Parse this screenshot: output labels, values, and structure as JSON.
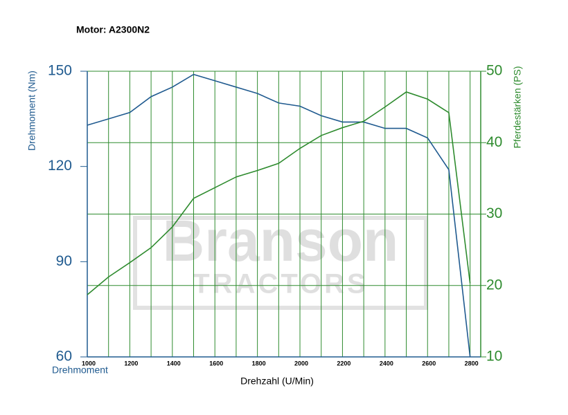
{
  "chart_data": {
    "type": "line",
    "title": "Motor: A2300N2",
    "x_label": "Drehzahl (U/Min)",
    "y_label": "Drehmoment (Nm)",
    "y_label_bottom": "Drehmoment",
    "y2_label": "Pferdestärken (PS)",
    "watermark": [
      "Branson",
      "TRACTORS"
    ],
    "x": [
      1000,
      1100,
      1200,
      1300,
      1400,
      1500,
      1600,
      1700,
      1800,
      1900,
      2000,
      2100,
      2200,
      2300,
      2400,
      2500,
      2600,
      2700,
      2800
    ],
    "series": [
      {
        "name": "Drehmoment (Nm)",
        "color": "#1f5a8f",
        "axis": "y",
        "values": [
          133,
          135,
          137,
          142,
          145,
          149,
          147,
          145,
          143,
          140,
          139,
          136,
          134,
          134,
          132,
          132,
          129,
          119,
          60
        ]
      },
      {
        "name": "Pferdestärken (PS)",
        "color": "#2e8b2e",
        "axis": "y2",
        "values": [
          18.7,
          21.2,
          23.2,
          25.3,
          28.2,
          32.2,
          33.7,
          35.2,
          36.1,
          37.1,
          39.2,
          41,
          42.1,
          43,
          45,
          47.1,
          46.1,
          44.2,
          20.3
        ]
      }
    ],
    "xlim": [
      1000,
      2850
    ],
    "xticks": [
      1000,
      1200,
      1400,
      1600,
      1800,
      2000,
      2200,
      2400,
      2600,
      2800
    ],
    "xgrid": [
      1000,
      1100,
      1200,
      1300,
      1400,
      1500,
      1600,
      1700,
      1800,
      1900,
      2000,
      2100,
      2200,
      2300,
      2400,
      2500,
      2600,
      2700,
      2800
    ],
    "ylim": [
      60,
      150
    ],
    "yticks": [
      60,
      90,
      120,
      150
    ],
    "y2lim": [
      10,
      50
    ],
    "y2ticks": [
      10,
      20,
      30,
      40,
      50
    ],
    "grid": true,
    "grid_color": "#2e8b2e"
  }
}
